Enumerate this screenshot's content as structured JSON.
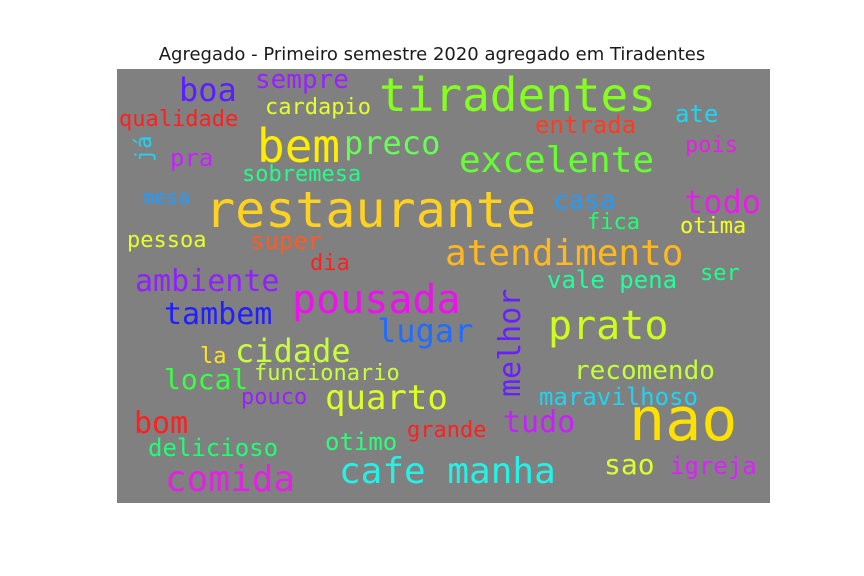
{
  "title": "Agregado - Primeiro semestre 2020 agregado em Tiradentes",
  "background_color": "#808080",
  "words": [
    {
      "text": "tiradentes",
      "color": "#84ff1f"
    },
    {
      "text": "restaurante",
      "color": "#ffd21f"
    },
    {
      "text": "nao",
      "color": "#ffe100"
    },
    {
      "text": "bem",
      "color": "#ffee00"
    },
    {
      "text": "excelente",
      "color": "#66ff33"
    },
    {
      "text": "pousada",
      "color": "#ee11ee"
    },
    {
      "text": "atendimento",
      "color": "#ffb81f"
    },
    {
      "text": "prato",
      "color": "#ccff1f"
    },
    {
      "text": "cafe manha",
      "color": "#22f2e8"
    },
    {
      "text": "comida",
      "color": "#e520e5"
    },
    {
      "text": "quarto",
      "color": "#ddff22"
    },
    {
      "text": "cidade",
      "color": "#c8ff3c"
    },
    {
      "text": "lugar",
      "color": "#1f6cff"
    },
    {
      "text": "melhor",
      "color": "#6a1fff"
    },
    {
      "text": "boa",
      "color": "#5a1fff"
    },
    {
      "text": "todo",
      "color": "#e61fe6"
    },
    {
      "text": "preco",
      "color": "#66ff55"
    },
    {
      "text": "ambiente",
      "color": "#9020ff"
    },
    {
      "text": "tambem",
      "color": "#1f1fff"
    },
    {
      "text": "tudo",
      "color": "#c81fff"
    },
    {
      "text": "bom",
      "color": "#ff1f1f"
    },
    {
      "text": "sempre",
      "color": "#9b1fff"
    },
    {
      "text": "recomendo",
      "color": "#c3ff3a"
    },
    {
      "text": "maravilhoso",
      "color": "#1fd4f2"
    },
    {
      "text": "local",
      "color": "#3aff45"
    },
    {
      "text": "casa",
      "color": "#1f9cff"
    },
    {
      "text": "entrada",
      "color": "#ff3b1f"
    },
    {
      "text": "sao",
      "color": "#ddff2a"
    },
    {
      "text": "igreja",
      "color": "#dd1fff"
    },
    {
      "text": "vale pena",
      "color": "#1fff9c"
    },
    {
      "text": "otimo",
      "color": "#2aff7a"
    },
    {
      "text": "super",
      "color": "#ff5a1f"
    },
    {
      "text": "delicioso",
      "color": "#1fff73"
    },
    {
      "text": "cardapio",
      "color": "#e5ff2a"
    },
    {
      "text": "qualidade",
      "color": "#ff1f1f"
    },
    {
      "text": "sobremesa",
      "color": "#1fff8a"
    },
    {
      "text": "funcionario",
      "color": "#c8ff3c"
    },
    {
      "text": "grande",
      "color": "#ff1f1f"
    },
    {
      "text": "pouco",
      "color": "#9b1fff"
    },
    {
      "text": "dia",
      "color": "#ff1f1f"
    },
    {
      "text": "ate",
      "color": "#1fd4f2"
    },
    {
      "text": "pois",
      "color": "#e61fe6"
    },
    {
      "text": "pra",
      "color": "#c81fff"
    },
    {
      "text": "fica",
      "color": "#1fff73"
    },
    {
      "text": "otima",
      "color": "#f5ff1f"
    },
    {
      "text": "pessoa",
      "color": "#e5ff2a"
    },
    {
      "text": "mesa",
      "color": "#1f9cff"
    },
    {
      "text": "ser",
      "color": "#1fff8a"
    },
    {
      "text": "la",
      "color": "#ffe41f"
    },
    {
      "text": "já",
      "color": "#1fd4f2"
    }
  ]
}
